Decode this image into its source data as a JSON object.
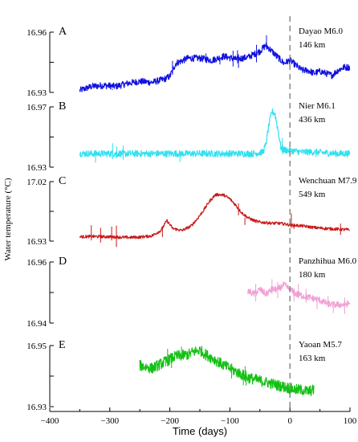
{
  "chart_data": {
    "type": "line",
    "title": "",
    "xlabel": "Time (days)",
    "ylabel": "Water temperature (°C)",
    "xlim": [
      -400,
      100
    ],
    "xticks": [
      "−400",
      "−300",
      "−200",
      "−100",
      "0",
      "100"
    ],
    "event_day": 0,
    "panels": [
      {
        "letter": "A",
        "event": "Dayao M6.0",
        "distance": "146 km",
        "color": "#1010e0",
        "ylim": [
          16.93,
          16.96
        ],
        "yticks": [
          "16.96",
          "16.93"
        ],
        "x": [
          -350,
          -330,
          -310,
          -290,
          -270,
          -250,
          -230,
          -210,
          -200,
          -190,
          -170,
          -150,
          -130,
          -110,
          -90,
          -70,
          -50,
          -40,
          -30,
          -20,
          -10,
          0,
          10,
          20,
          30,
          40,
          50,
          60,
          70,
          80,
          90,
          100
        ],
        "y": [
          16.931,
          16.933,
          16.9335,
          16.933,
          16.9345,
          16.9355,
          16.935,
          16.9365,
          16.938,
          16.9445,
          16.947,
          16.947,
          16.946,
          16.948,
          16.9465,
          16.9475,
          16.9505,
          16.9535,
          16.9505,
          16.9475,
          16.9445,
          16.946,
          16.9435,
          16.941,
          16.941,
          16.9395,
          16.9405,
          16.9395,
          16.9385,
          16.941,
          16.9425,
          16.9425
        ]
      },
      {
        "letter": "B",
        "event": "Nier  M6.1",
        "distance": "436 km",
        "color": "#30e0f0",
        "ylim": [
          16.93,
          16.97
        ],
        "yticks": [
          "16.97",
          "16.93"
        ],
        "x": [
          -350,
          -300,
          -250,
          -200,
          -150,
          -100,
          -60,
          -45,
          -40,
          -35,
          -30,
          -25,
          -20,
          -15,
          -10,
          0,
          20,
          40,
          60,
          80,
          100
        ],
        "y": [
          16.939,
          16.939,
          16.939,
          16.939,
          16.939,
          16.939,
          16.939,
          16.94,
          16.945,
          16.958,
          16.967,
          16.9655,
          16.955,
          16.943,
          16.9415,
          16.941,
          16.94,
          16.94,
          16.9395,
          16.939,
          16.939
        ]
      },
      {
        "letter": "C",
        "event": "Wenchuan M7.9",
        "distance": "549 km",
        "color": "#c81818",
        "ylim": [
          16.93,
          17.02
        ],
        "yticks": [
          "17.02",
          "16.93"
        ],
        "x": [
          -350,
          -330,
          -300,
          -270,
          -250,
          -230,
          -215,
          -205,
          -195,
          -180,
          -165,
          -155,
          -145,
          -135,
          -125,
          -120,
          -110,
          -100,
          -90,
          -80,
          -70,
          -60,
          -50,
          -40,
          -30,
          -20,
          -10,
          0,
          20,
          40,
          60,
          80,
          100
        ],
        "y": [
          16.9365,
          16.937,
          16.9365,
          16.9355,
          16.936,
          16.938,
          16.946,
          16.961,
          16.949,
          16.946,
          16.9525,
          16.963,
          16.975,
          16.989,
          16.9995,
          17.0005,
          16.9995,
          16.994,
          16.984,
          16.9725,
          16.9655,
          16.961,
          16.9585,
          16.958,
          16.957,
          16.957,
          16.956,
          16.9545,
          16.953,
          16.9505,
          16.949,
          16.948,
          16.947
        ]
      },
      {
        "letter": "D",
        "event": "Panzhihua M6.0",
        "distance": "180 km",
        "color": "#f0a0d4",
        "ylim": [
          16.94,
          16.96
        ],
        "yticks": [
          "16.96",
          "16.94"
        ],
        "x": [
          -70,
          -60,
          -50,
          -40,
          -30,
          -20,
          -10,
          0,
          10,
          20,
          30,
          40,
          50,
          60,
          70,
          80,
          90,
          100
        ],
        "y": [
          16.9505,
          16.9495,
          16.951,
          16.9495,
          16.951,
          16.951,
          16.9525,
          16.951,
          16.9495,
          16.949,
          16.9485,
          16.948,
          16.9475,
          16.9465,
          16.946,
          16.946,
          16.946,
          16.9465
        ]
      },
      {
        "letter": "E",
        "event": "Yaoan  M5.7",
        "distance": "163 km",
        "color": "#14c014",
        "ylim": [
          16.93,
          16.95
        ],
        "yticks": [
          "16.95",
          "16.93"
        ],
        "x": [
          -250,
          -230,
          -210,
          -190,
          -170,
          -160,
          -150,
          -140,
          -130,
          -110,
          -90,
          -70,
          -50,
          -30,
          -10,
          0,
          10,
          20,
          30,
          40
        ],
        "y": [
          16.9435,
          16.9425,
          16.9445,
          16.9465,
          16.947,
          16.948,
          16.9485,
          16.947,
          16.946,
          16.9435,
          16.9415,
          16.9395,
          16.9385,
          16.9375,
          16.9365,
          16.936,
          16.9355,
          16.9355,
          16.935,
          16.9355
        ]
      }
    ]
  }
}
